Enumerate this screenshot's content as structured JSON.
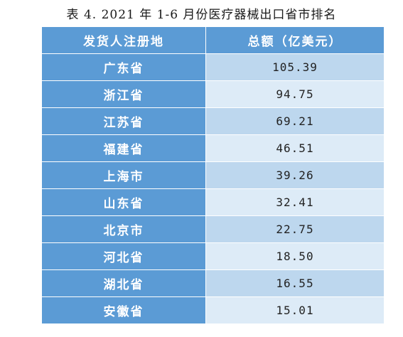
{
  "caption": "表 4. 2021 年 1-6 月份医疗器械出口省市排名",
  "header": {
    "col_province": "发货人注册地",
    "col_amount": "总额（亿美元）"
  },
  "rows": [
    {
      "province": "广东省",
      "amount": "105.39"
    },
    {
      "province": "浙江省",
      "amount": "94.75"
    },
    {
      "province": "江苏省",
      "amount": "69.21"
    },
    {
      "province": "福建省",
      "amount": "46.51"
    },
    {
      "province": "上海市",
      "amount": "39.26"
    },
    {
      "province": "山东省",
      "amount": "32.41"
    },
    {
      "province": "北京市",
      "amount": "22.75"
    },
    {
      "province": "河北省",
      "amount": "18.50"
    },
    {
      "province": "湖北省",
      "amount": "16.55"
    },
    {
      "province": "安徽省",
      "amount": "15.01"
    }
  ],
  "colors": {
    "header_blue": "#5b9bd5",
    "row_light_a": "#bdd7ee",
    "row_light_b": "#ddebf7"
  }
}
